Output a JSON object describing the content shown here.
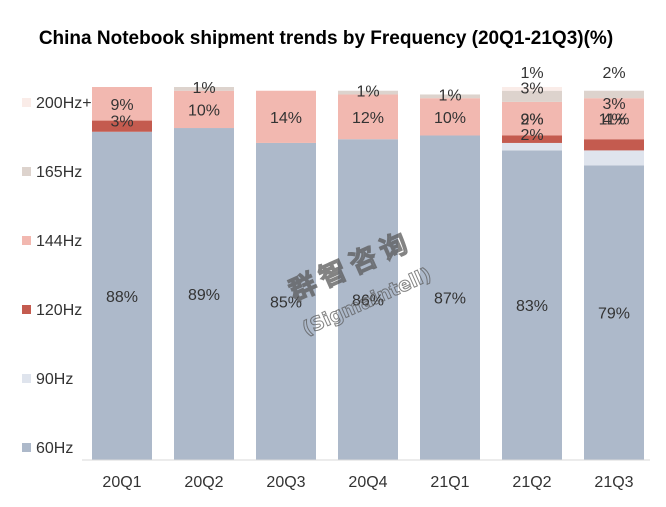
{
  "chart_data": {
    "type": "bar",
    "stacked": true,
    "title": "China Notebook shipment trends by Frequency (20Q1-21Q3)(%)",
    "categories": [
      "20Q1",
      "20Q2",
      "20Q3",
      "20Q4",
      "21Q1",
      "21Q2",
      "21Q3"
    ],
    "series": [
      {
        "name": "60Hz",
        "color": "#adb9ca",
        "values": [
          88,
          89,
          85,
          86,
          87,
          83,
          79
        ],
        "labels": [
          "88%",
          "89%",
          "85%",
          "86%",
          "87%",
          "83%",
          "79%"
        ]
      },
      {
        "name": "90Hz",
        "color": "#dfe4ed",
        "values": [
          0,
          0,
          0,
          0,
          0,
          2,
          4
        ],
        "labels": [
          "",
          "",
          "",
          "",
          "",
          "2%",
          "4%"
        ]
      },
      {
        "name": "120Hz",
        "color": "#c45b4f",
        "values": [
          3,
          0,
          0,
          0,
          0,
          2,
          3
        ],
        "labels": [
          "3%",
          "",
          "",
          "",
          "",
          "2%",
          "3%"
        ]
      },
      {
        "name": "144Hz",
        "color": "#f2b8b0",
        "values": [
          9,
          10,
          14,
          12,
          10,
          9,
          11
        ],
        "labels": [
          "9%",
          "10%",
          "14%",
          "12%",
          "10%",
          "9%",
          "11%"
        ]
      },
      {
        "name": "165Hz",
        "color": "#ddd3cd",
        "values": [
          0,
          1,
          0,
          1,
          1,
          3,
          2
        ],
        "labels": [
          "",
          "1%",
          "",
          "1%",
          "1%",
          "3%",
          "2%"
        ]
      },
      {
        "name": "200Hz+",
        "color": "#faece8",
        "values": [
          0,
          0,
          0,
          0,
          0,
          1,
          0
        ],
        "labels": [
          "",
          "",
          "",
          "",
          "",
          "1%",
          ""
        ]
      }
    ],
    "ylim": [
      0,
      100
    ],
    "xlabel": "",
    "ylabel": "",
    "legend_position": "left",
    "grid": false
  },
  "watermark": {
    "chinese": "群智咨询",
    "english": "(Sigmaintell)"
  }
}
